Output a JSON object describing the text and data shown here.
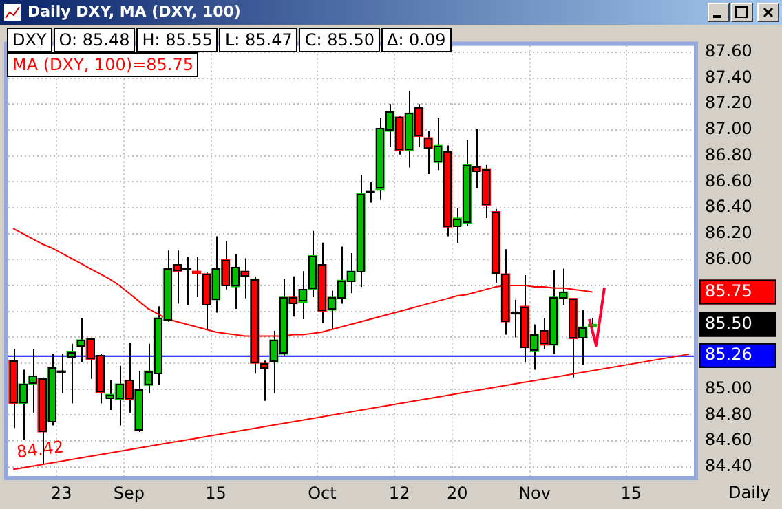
{
  "chart_data": {
    "type": "candlestick",
    "title": "Daily DXY, MA (DXY, 100)",
    "xlabel": "Daily",
    "categories": [
      null,
      null,
      null,
      null,
      null,
      "23",
      null,
      null,
      null,
      null,
      null,
      null,
      "Sep",
      null,
      null,
      null,
      null,
      null,
      null,
      null,
      null,
      "15",
      null,
      null,
      null,
      null,
      null,
      null,
      null,
      null,
      null,
      null,
      "Oct",
      null,
      null,
      null,
      null,
      null,
      null,
      null,
      "12",
      null,
      null,
      null,
      null,
      null,
      "20",
      null,
      null,
      null,
      null,
      null,
      null,
      null,
      "Nov",
      null,
      null,
      null,
      null,
      null,
      null,
      null,
      null,
      null,
      "15",
      null,
      null,
      null,
      null,
      null,
      null
    ],
    "series": [
      {
        "colors": [
          "#ff0000",
          "#00c000",
          "#00c000",
          "#ff0000",
          "#00c000",
          "#000000",
          "#00c000",
          "#00c000",
          "#ff0000",
          "#ff0000",
          "#00c000",
          "#00c000",
          "#ff0000",
          "#00c000",
          "#00c000",
          "#00c000",
          "#00c000",
          "#ff0000",
          "#000000",
          "#ff0000",
          "#ff0000",
          "#00c000",
          "#ff0000",
          "#00c000",
          "#ff0000",
          "#ff0000",
          "#ff0000",
          "#00c000",
          "#00c000",
          "#ff0000",
          "#00c000",
          "#00c000",
          "#ff0000",
          "#00c000",
          "#00c000",
          "#00c000",
          "#00c000",
          "#000000",
          "#00c000",
          "#00c000",
          "#ff0000",
          "#00c000",
          "#ff0000",
          "#ff0000",
          "#00c000",
          "#ff0000",
          "#00c000",
          "#00c000",
          "#ff0000",
          "#ff0000",
          "#ff0000",
          "#ff0000",
          "#000000",
          "#ff0000",
          "#00c000",
          "#ff0000",
          "#00c000",
          "#00c000",
          "#ff0000",
          "#00c000",
          "#00c000",
          null,
          null,
          null,
          null,
          null,
          null,
          null,
          null,
          null,
          null
        ],
        "ohlc": [
          [
            85.22,
            85.31,
            84.7,
            84.89
          ],
          [
            84.89,
            85.15,
            84.61,
            85.04
          ],
          [
            85.04,
            85.31,
            84.82,
            85.1
          ],
          [
            85.08,
            85.09,
            84.42,
            84.67
          ],
          [
            84.75,
            85.27,
            84.72,
            85.17
          ],
          [
            85.13,
            85.27,
            84.97,
            85.13
          ],
          [
            85.25,
            85.35,
            84.89,
            85.29
          ],
          [
            85.33,
            85.55,
            85.21,
            85.38
          ],
          [
            85.39,
            85.39,
            85.08,
            85.23
          ],
          [
            85.26,
            85.27,
            84.89,
            84.97
          ],
          [
            84.93,
            85.07,
            84.84,
            84.96
          ],
          [
            84.92,
            85.18,
            84.72,
            85.04
          ],
          [
            85.07,
            85.36,
            84.82,
            84.92
          ],
          [
            84.68,
            85.14,
            84.67,
            85.0
          ],
          [
            85.03,
            85.35,
            84.97,
            85.14
          ],
          [
            85.12,
            85.64,
            85.03,
            85.55
          ],
          [
            85.53,
            86.07,
            85.52,
            85.93
          ],
          [
            85.96,
            86.07,
            85.66,
            85.91
          ],
          [
            85.92,
            86.02,
            85.65,
            85.92
          ],
          [
            85.91,
            86.02,
            85.71,
            85.89
          ],
          [
            85.89,
            85.9,
            85.46,
            85.65
          ],
          [
            85.69,
            86.18,
            85.59,
            85.93
          ],
          [
            86.0,
            86.14,
            85.77,
            85.8
          ],
          [
            85.79,
            86.04,
            85.62,
            85.94
          ],
          [
            85.91,
            86.01,
            85.7,
            85.87
          ],
          [
            85.85,
            85.87,
            85.12,
            85.2
          ],
          [
            85.2,
            85.22,
            84.91,
            85.16
          ],
          [
            85.21,
            85.45,
            84.97,
            85.38
          ],
          [
            85.27,
            85.85,
            85.26,
            85.71
          ],
          [
            85.71,
            85.87,
            85.56,
            85.66
          ],
          [
            85.67,
            85.91,
            85.54,
            85.77
          ],
          [
            85.77,
            86.22,
            85.71,
            86.03
          ],
          [
            85.96,
            86.13,
            85.51,
            85.6
          ],
          [
            85.61,
            85.76,
            85.46,
            85.71
          ],
          [
            85.7,
            86.1,
            85.66,
            85.84
          ],
          [
            85.83,
            86.05,
            85.74,
            85.91
          ],
          [
            85.91,
            86.65,
            85.79,
            86.51
          ],
          [
            86.52,
            86.6,
            86.44,
            86.52
          ],
          [
            86.54,
            87.09,
            86.46,
            87.01
          ],
          [
            86.99,
            87.2,
            86.87,
            87.14
          ],
          [
            87.1,
            87.11,
            86.81,
            86.84
          ],
          [
            86.84,
            87.3,
            86.71,
            87.13
          ],
          [
            87.17,
            87.2,
            86.87,
            86.95
          ],
          [
            86.94,
            86.99,
            86.66,
            86.86
          ],
          [
            86.75,
            87.09,
            86.69,
            86.88
          ],
          [
            86.83,
            86.88,
            86.18,
            86.25
          ],
          [
            86.26,
            86.4,
            86.13,
            86.32
          ],
          [
            86.28,
            86.92,
            86.26,
            86.73
          ],
          [
            86.72,
            87.01,
            86.55,
            86.68
          ],
          [
            86.7,
            86.73,
            86.32,
            86.42
          ],
          [
            86.37,
            86.39,
            85.82,
            85.89
          ],
          [
            85.89,
            86.08,
            85.42,
            85.52
          ],
          [
            85.58,
            85.69,
            85.4,
            85.58
          ],
          [
            85.64,
            85.88,
            85.21,
            85.32
          ],
          [
            85.29,
            85.5,
            85.15,
            85.42
          ],
          [
            85.45,
            85.55,
            85.31,
            85.34
          ],
          [
            85.34,
            85.92,
            85.27,
            85.71
          ],
          [
            85.7,
            85.93,
            85.65,
            85.75
          ],
          [
            85.7,
            85.7,
            85.09,
            85.39
          ],
          [
            85.4,
            85.61,
            85.19,
            85.48
          ],
          [
            85.48,
            85.55,
            85.47,
            85.5
          ],
          null,
          null,
          null,
          null,
          null,
          null,
          null,
          null,
          null,
          null
        ]
      },
      {
        "type": "line",
        "color": "#ff0000",
        "values": [
          86.24,
          86.2,
          86.16,
          86.12,
          86.09,
          86.05,
          86.01,
          85.97,
          85.93,
          85.89,
          85.85,
          85.8,
          85.74,
          85.68,
          85.62,
          85.58,
          85.54,
          85.52,
          85.5,
          85.48,
          85.46,
          85.44,
          85.43,
          85.42,
          85.41,
          85.41,
          85.41,
          85.41,
          85.41,
          85.42,
          85.42,
          85.43,
          85.44,
          85.46,
          85.48,
          85.5,
          85.52,
          85.54,
          85.56,
          85.58,
          85.6,
          85.62,
          85.64,
          85.66,
          85.68,
          85.7,
          85.72,
          85.73,
          85.75,
          85.77,
          85.79,
          85.8,
          85.8,
          85.8,
          85.79,
          85.79,
          85.78,
          85.78,
          85.77,
          85.76,
          85.75,
          null,
          null,
          null,
          null,
          null,
          null,
          null,
          null,
          null,
          null
        ]
      },
      {
        "type": "line",
        "color": "#ff0000",
        "values": [
          84.38,
          null,
          null,
          null,
          null,
          null,
          null,
          null,
          null,
          null,
          null,
          null,
          null,
          null,
          null,
          null,
          null,
          null,
          null,
          null,
          null,
          null,
          null,
          null,
          null,
          null,
          null,
          null,
          null,
          null,
          null,
          null,
          null,
          null,
          null,
          null,
          null,
          null,
          null,
          null,
          null,
          null,
          null,
          null,
          null,
          null,
          null,
          null,
          null,
          null,
          null,
          null,
          null,
          null,
          null,
          null,
          null,
          null,
          null,
          null,
          null,
          null,
          null,
          null,
          null,
          null,
          null,
          null,
          null,
          null,
          85.27
        ]
      }
    ],
    "ylim": [
      84.33,
      87.65
    ],
    "yticks": [
      {
        "value": 84.4,
        "label": "84.40"
      },
      {
        "value": 84.6,
        "label": "84.60"
      },
      {
        "value": 84.8,
        "label": "84.80"
      },
      {
        "value": 85.0,
        "label": "85.00"
      },
      {
        "value": 85.2,
        "label": null
      },
      {
        "value": 85.4,
        "label": null
      },
      {
        "value": 85.6,
        "label": null
      },
      {
        "value": 85.8,
        "label": null
      },
      {
        "value": 86.0,
        "label": "86.00"
      },
      {
        "value": 86.2,
        "label": "86.20"
      },
      {
        "value": 86.4,
        "label": "86.40"
      },
      {
        "value": 86.6,
        "label": "86.60"
      },
      {
        "value": 86.8,
        "label": "86.80"
      },
      {
        "value": 87.0,
        "label": "87.00"
      },
      {
        "value": 87.2,
        "label": "87.20"
      },
      {
        "value": 87.4,
        "label": "87.40"
      },
      {
        "value": 87.6,
        "label": "87.60"
      }
    ],
    "ref_lines": [
      {
        "axis": "y",
        "value": 85.26,
        "label": "85.26",
        "color": "#0000ff"
      }
    ],
    "annotations": [
      "DXY",
      "O: 85.48",
      "H: 85.55",
      "L: 85.47",
      "C: 85.50",
      "Δ: 0.09",
      "MA (DXY, 100)=85.75",
      "85.75",
      "85.50",
      {
        "text": "84.42",
        "y": 84.42
      }
    ],
    "grid": true,
    "legend": false
  }
}
